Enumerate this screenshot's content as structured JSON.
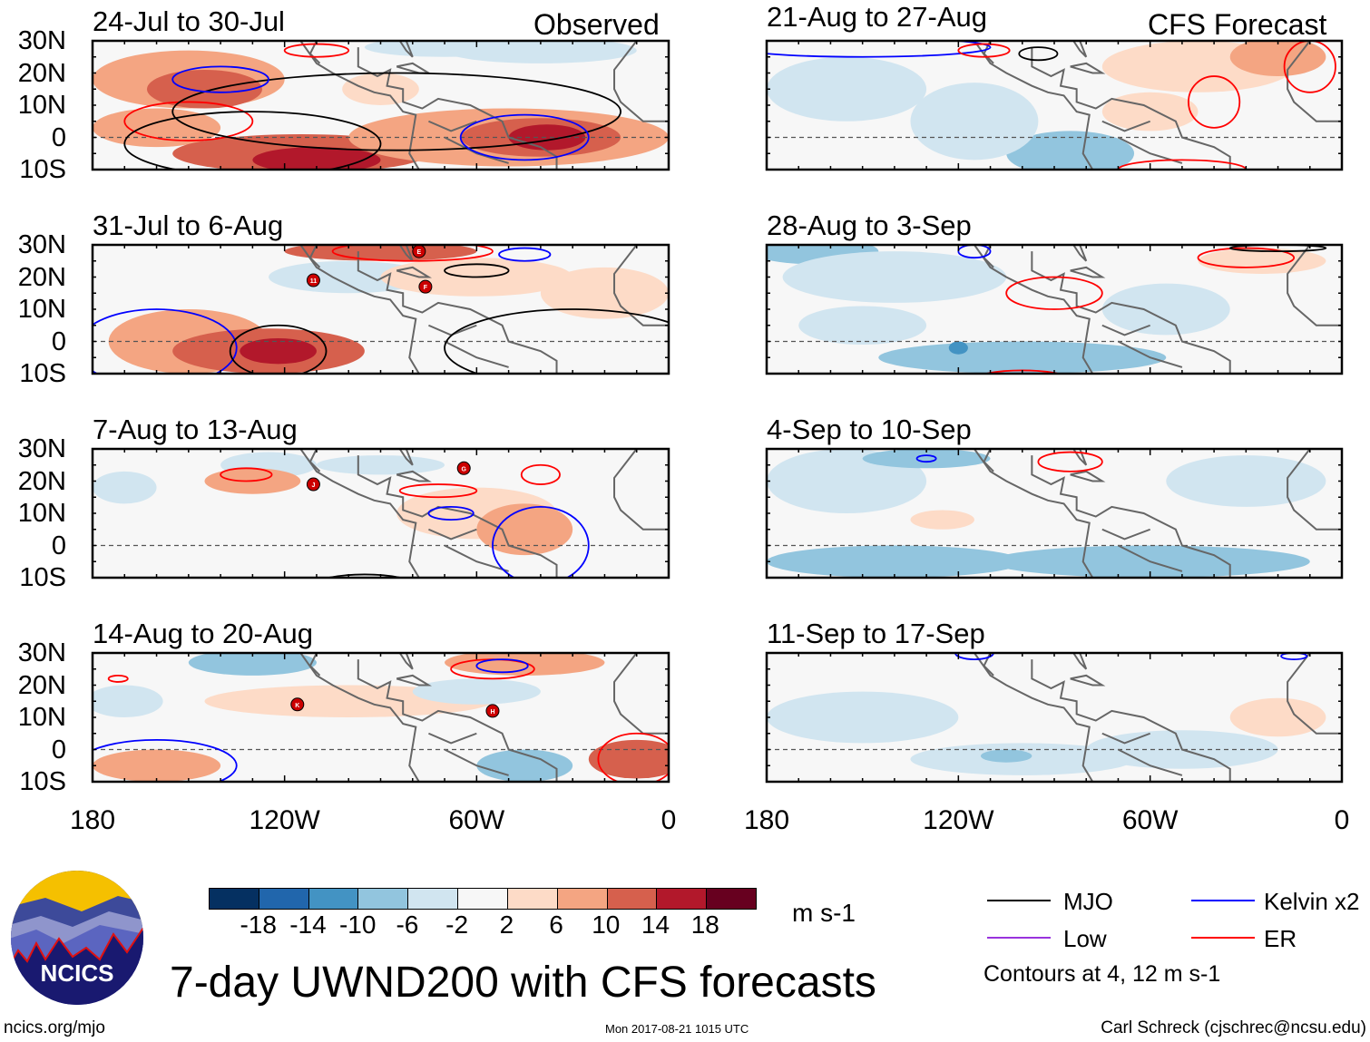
{
  "figure_title": "7-day UWND200 with CFS forecasts",
  "column_labels": {
    "observed": "Observed",
    "forecast": "CFS Forecast"
  },
  "panels": {
    "observed": [
      {
        "title": "24-Jul to 30-Jul",
        "storms": []
      },
      {
        "title": "31-Jul to 6-Aug",
        "storms": [
          "E",
          "11",
          "F"
        ]
      },
      {
        "title": "7-Aug to 13-Aug",
        "storms": [
          "J",
          "G"
        ]
      },
      {
        "title": "14-Aug to 20-Aug",
        "storms": [
          "K",
          "H"
        ]
      }
    ],
    "forecast": [
      {
        "title": "21-Aug to 27-Aug"
      },
      {
        "title": "28-Aug to 3-Sep"
      },
      {
        "title": "4-Sep to 10-Sep"
      },
      {
        "title": "11-Sep to 17-Sep"
      }
    ]
  },
  "lat_labels": [
    "30N",
    "20N",
    "10N",
    "0",
    "10S"
  ],
  "lon_labels": [
    "180",
    "120W",
    "60W",
    "0"
  ],
  "colorbar": {
    "unit": "m s-1",
    "tick_labels": [
      "-18",
      "-14",
      "-10",
      "-6",
      "-2",
      "2",
      "6",
      "10",
      "14",
      "18"
    ],
    "colors": [
      "#053061",
      "#2166ac",
      "#4393c3",
      "#92c5de",
      "#d1e5f0",
      "#f7f7f7",
      "#fddbc7",
      "#f4a582",
      "#d6604d",
      "#b2182b",
      "#67001f"
    ]
  },
  "legend": {
    "items": [
      {
        "label": "MJO",
        "color": "#000000"
      },
      {
        "label": "Kelvin x2",
        "color": "#0000ff"
      },
      {
        "label": "Low",
        "color": "#9933dd"
      },
      {
        "label": "ER",
        "color": "#ff0000"
      }
    ],
    "contour_note": "Contours at 4, 12 m s-1"
  },
  "logo_text": "NCICS",
  "footer": {
    "url": "ncics.org/mjo",
    "timestamp": "Mon 2017-08-21 1015 UTC",
    "credit": "Carl Schreck (cjschrec@ncsu.edu)"
  }
}
